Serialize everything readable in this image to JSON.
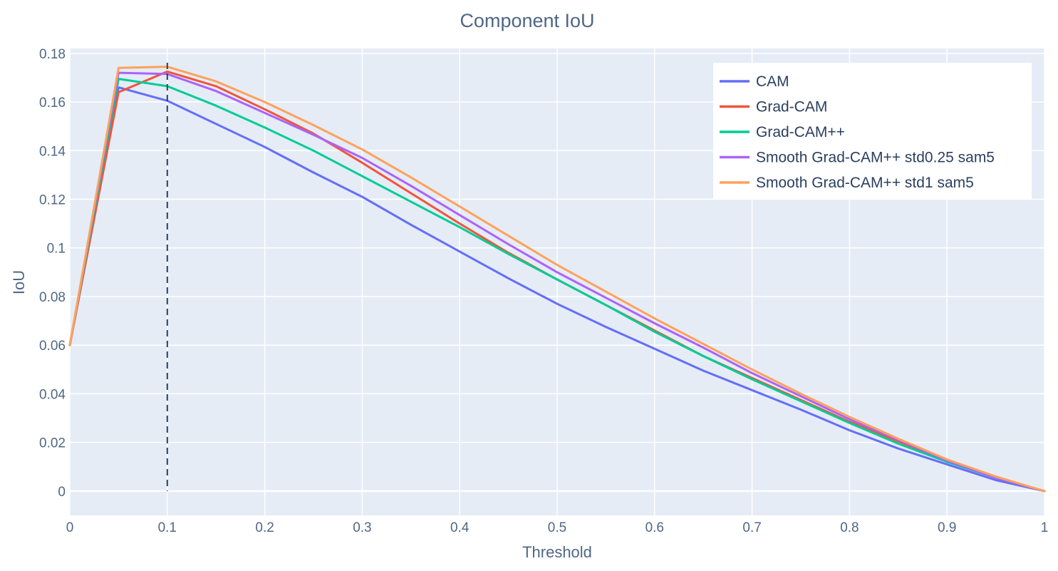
{
  "chart_data": {
    "type": "line",
    "title": "Component IoU",
    "xlabel": "Threshold",
    "ylabel": "IoU",
    "xlim": [
      0,
      1
    ],
    "ylim": [
      -0.01,
      0.182
    ],
    "x_ticks": [
      0,
      0.1,
      0.2,
      0.3,
      0.4,
      0.5,
      0.6,
      0.7,
      0.8,
      0.9,
      1
    ],
    "x_tick_labels": [
      "0",
      "0.1",
      "0.2",
      "0.3",
      "0.4",
      "0.5",
      "0.6",
      "0.7",
      "0.8",
      "0.9",
      "1"
    ],
    "y_ticks": [
      0,
      0.02,
      0.04,
      0.06,
      0.08,
      0.1,
      0.12,
      0.14,
      0.16,
      0.18
    ],
    "y_tick_labels": [
      "0",
      "0.02",
      "0.04",
      "0.06",
      "0.08",
      "0.1",
      "0.12",
      "0.14",
      "0.16",
      "0.18"
    ],
    "grid": true,
    "legend_position": "top-right",
    "vertical_reference_line": {
      "x": 0.1,
      "style": "dashed",
      "color": "#2a3f5f"
    },
    "x": [
      0,
      0.05,
      0.1,
      0.15,
      0.2,
      0.25,
      0.3,
      0.35,
      0.4,
      0.45,
      0.5,
      0.55,
      0.6,
      0.65,
      0.7,
      0.75,
      0.8,
      0.85,
      0.9,
      0.95,
      1
    ],
    "series": [
      {
        "name": "CAM",
        "color": "#636efa",
        "values": [
          0.06,
          0.166,
          0.1605,
          0.151,
          0.1415,
          0.131,
          0.121,
          0.1095,
          0.0985,
          0.0875,
          0.077,
          0.0675,
          0.0585,
          0.0495,
          0.0415,
          0.0335,
          0.025,
          0.0175,
          0.011,
          0.0045,
          0.0
        ]
      },
      {
        "name": "Grad-CAM",
        "color": "#ef553b",
        "values": [
          0.06,
          0.164,
          0.1725,
          0.1665,
          0.157,
          0.147,
          0.135,
          0.1225,
          0.11,
          0.098,
          0.087,
          0.0765,
          0.066,
          0.0555,
          0.0465,
          0.0375,
          0.0285,
          0.0205,
          0.0125,
          0.0055,
          0.0
        ]
      },
      {
        "name": "Grad-CAM++",
        "color": "#00cc96",
        "values": [
          0.06,
          0.1695,
          0.1665,
          0.1585,
          0.1495,
          0.14,
          0.1295,
          0.119,
          0.1085,
          0.0975,
          0.087,
          0.0765,
          0.0655,
          0.0555,
          0.046,
          0.037,
          0.028,
          0.0195,
          0.012,
          0.0055,
          0.0
        ]
      },
      {
        "name": "Smooth Grad-CAM++ std0.25 sam5",
        "color": "#ab63fa",
        "values": [
          0.06,
          0.172,
          0.1715,
          0.1645,
          0.1555,
          0.1465,
          0.137,
          0.1255,
          0.1135,
          0.1015,
          0.09,
          0.0795,
          0.069,
          0.059,
          0.0485,
          0.039,
          0.0295,
          0.021,
          0.0125,
          0.0055,
          0.0
        ]
      },
      {
        "name": "Smooth Grad-CAM++ std1 sam5",
        "color": "#ffa15a",
        "values": [
          0.06,
          0.174,
          0.1745,
          0.1685,
          0.16,
          0.1505,
          0.1405,
          0.129,
          0.117,
          0.105,
          0.093,
          0.082,
          0.071,
          0.0605,
          0.05,
          0.04,
          0.0305,
          0.0215,
          0.013,
          0.006,
          0.0
        ]
      }
    ]
  },
  "style": {
    "plot_bg": "#e5ecf6",
    "grid_color": "#ffffff",
    "text_color": "#506784",
    "legend_bg": "#ffffff"
  }
}
